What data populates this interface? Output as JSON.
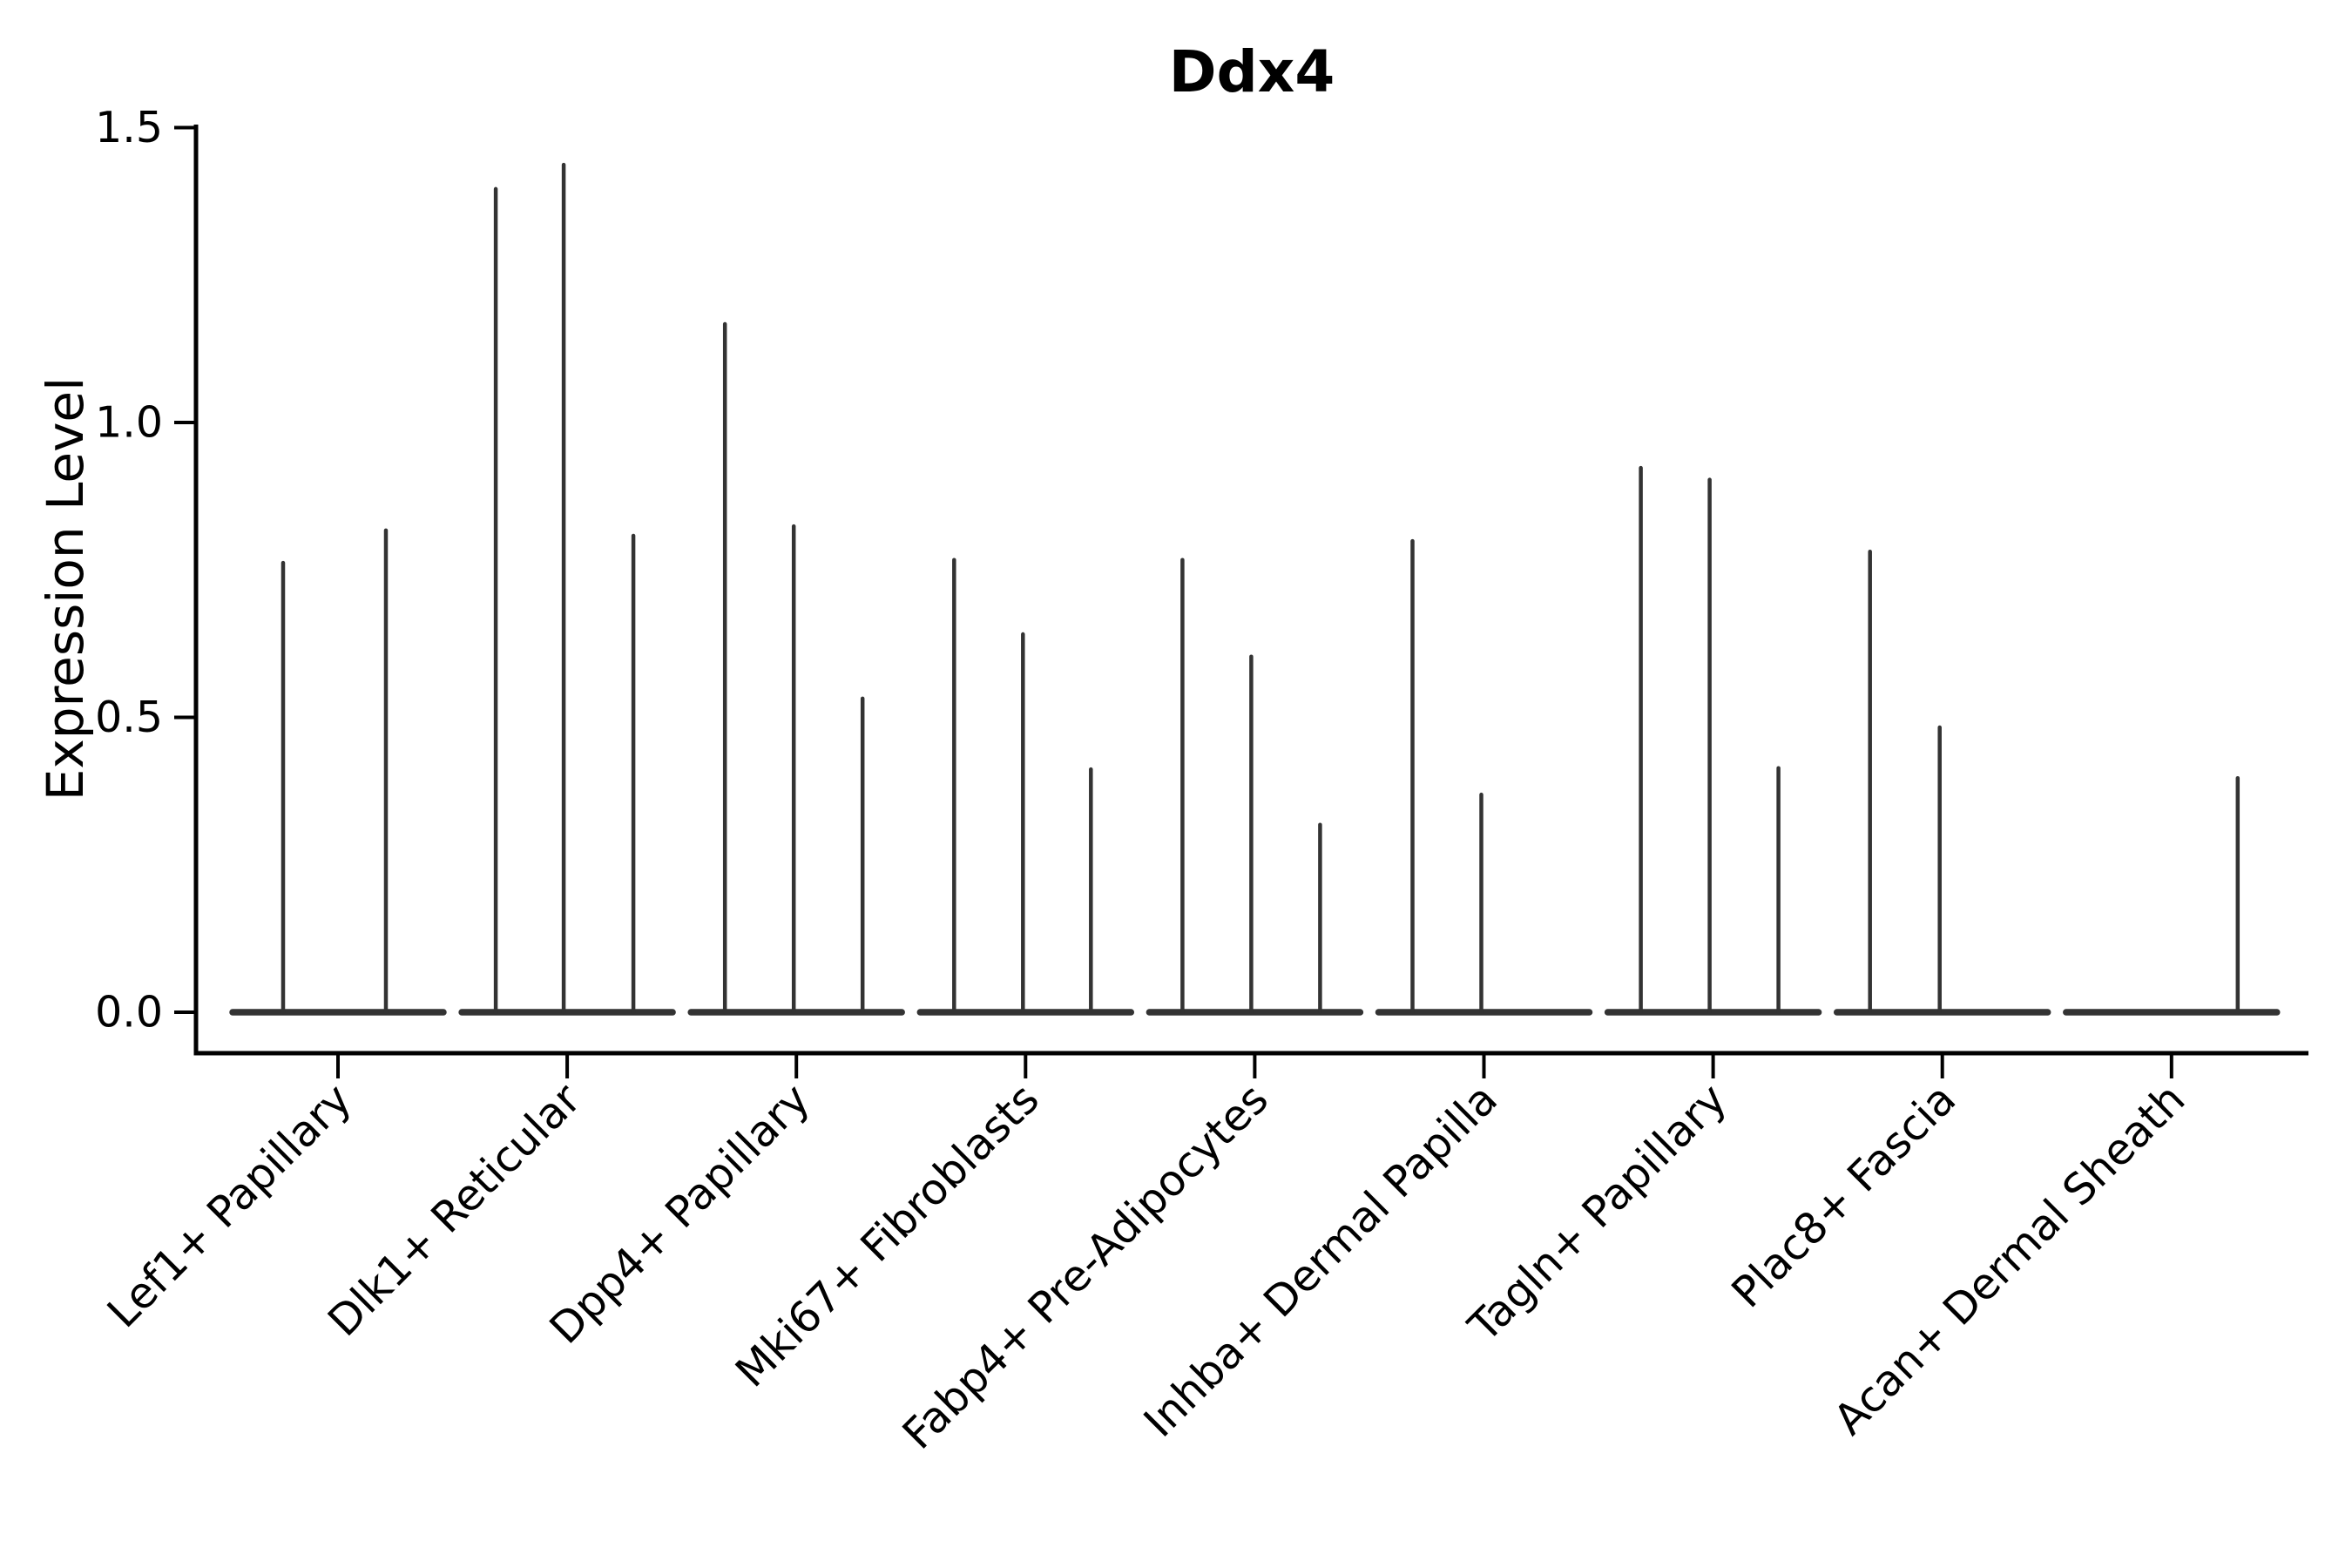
{
  "title": "Ddx4",
  "chart_data": {
    "type": "violin",
    "title": "Ddx4",
    "subtitle": "",
    "xlabel": "",
    "ylabel": "Expression Level",
    "ytick_labels": [
      "0.0",
      "0.5",
      "1.0",
      "1.5"
    ],
    "yticks": [
      0.0,
      0.5,
      1.0,
      1.5
    ],
    "ylim": [
      -0.07,
      1.51
    ],
    "grid": false,
    "legend_position": "none",
    "categories": [
      "Lef1+ Papillary",
      "Dlk1+ Reticular",
      "Dpp4+ Papillary",
      "Mki67+ Fibroblasts",
      "Fabp4+ Pre-Adipocytes",
      "Inhba+ Dermal Papilla",
      "Tagln+ Papillary",
      "Plac8+ Fascia",
      "Acan+ Dermal Sheath"
    ],
    "series": [
      {
        "category": "Lef1+ Papillary",
        "spikes": [
          {
            "dx": -63,
            "value": 0.762
          },
          {
            "dx": 55,
            "value": 0.817
          }
        ]
      },
      {
        "category": "Dlk1+ Reticular",
        "spikes": [
          {
            "dx": -82,
            "value": 1.396
          },
          {
            "dx": -4,
            "value": 1.437
          },
          {
            "dx": 76,
            "value": 0.808
          }
        ]
      },
      {
        "category": "Dpp4+ Papillary",
        "spikes": [
          {
            "dx": -82,
            "value": 1.167
          },
          {
            "dx": -3,
            "value": 0.824
          },
          {
            "dx": 76,
            "value": 0.532
          }
        ]
      },
      {
        "category": "Mki67+ Fibroblasts",
        "spikes": [
          {
            "dx": -82,
            "value": 0.767
          },
          {
            "dx": -3,
            "value": 0.641
          },
          {
            "dx": 75,
            "value": 0.412
          }
        ]
      },
      {
        "category": "Fabp4+ Pre-Adipocytes",
        "spikes": [
          {
            "dx": -83,
            "value": 0.767
          },
          {
            "dx": -4,
            "value": 0.603
          },
          {
            "dx": 75,
            "value": 0.318
          }
        ]
      },
      {
        "category": "Inhba+ Dermal Papilla",
        "spikes": [
          {
            "dx": -82,
            "value": 0.799
          },
          {
            "dx": -3,
            "value": 0.369
          }
        ]
      },
      {
        "category": "Tagln+ Papillary",
        "spikes": [
          {
            "dx": -83,
            "value": 0.923
          },
          {
            "dx": -4,
            "value": 0.903
          },
          {
            "dx": 75,
            "value": 0.414
          }
        ]
      },
      {
        "category": "Plac8+ Fascia",
        "spikes": [
          {
            "dx": -83,
            "value": 0.781
          },
          {
            "dx": -3,
            "value": 0.483
          }
        ]
      },
      {
        "category": "Acan+ Dermal Sheath",
        "spikes": [
          {
            "dx": 76,
            "value": 0.397
          }
        ]
      }
    ],
    "colors": {
      "violin_line": "#333333",
      "axis": "#000000",
      "text": "#000000",
      "background": "#ffffff"
    }
  }
}
